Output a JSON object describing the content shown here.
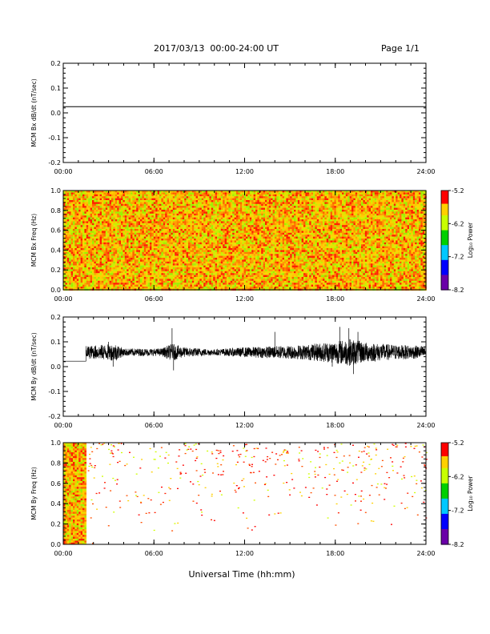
{
  "header": {
    "title": "2017/03/13  00:00-24:00 UT",
    "page": "Page 1/1"
  },
  "xaxis_label": "Universal Time (hh:mm)",
  "chart_data": [
    {
      "type": "line",
      "ylabel": "MCM Bx dB/dt (nT/sec)",
      "xlim": [
        "00:00",
        "24:00"
      ],
      "ylim": [
        -0.2,
        0.2
      ],
      "xticks": [
        "00:00",
        "06:00",
        "12:00",
        "18:00",
        "24:00"
      ],
      "yticks": [
        "-0.2",
        "-0.1",
        "0.0",
        "0.1",
        "0.2"
      ],
      "series": [
        {
          "x": [
            0,
            24
          ],
          "y": [
            0.025,
            0.025
          ],
          "color": "#000000"
        }
      ]
    },
    {
      "type": "heatmap",
      "ylabel": "MCM Bx Freq (Hz)",
      "xlim": [
        "00:00",
        "24:00"
      ],
      "ylim": [
        0.0,
        1.0
      ],
      "xticks": [
        "00:00",
        "06:00",
        "12:00",
        "18:00",
        "24:00"
      ],
      "yticks": [
        "0.0",
        "0.2",
        "0.4",
        "0.6",
        "0.8",
        "1.0"
      ],
      "fill_hours": [
        0,
        24
      ],
      "colorbar": {
        "label": "Log₁₀ Power",
        "range": [
          -8.2,
          -5.2
        ],
        "ticks": [
          "-5.2",
          "-6.2",
          "-7.2",
          "-8.2"
        ]
      }
    },
    {
      "type": "line",
      "ylabel": "MCM By dB/dt (nT/sec)",
      "xlim": [
        "00:00",
        "24:00"
      ],
      "ylim": [
        -0.2,
        0.2
      ],
      "xticks": [
        "00:00",
        "06:00",
        "12:00",
        "18:00",
        "24:00"
      ],
      "yticks": [
        "-0.2",
        "-0.1",
        "0.0",
        "0.1",
        "0.2"
      ],
      "baseline": 0.022,
      "baseline_end_hour": 1.5,
      "mean": 0.058,
      "envelope": [
        [
          1.5,
          0.025
        ],
        [
          3.5,
          0.035
        ],
        [
          4.0,
          0.015
        ],
        [
          6.5,
          0.015
        ],
        [
          7.2,
          0.035
        ],
        [
          8.0,
          0.02
        ],
        [
          10.0,
          0.012
        ],
        [
          12.0,
          0.02
        ],
        [
          14.0,
          0.025
        ],
        [
          16.0,
          0.03
        ],
        [
          18.0,
          0.045
        ],
        [
          19.0,
          0.055
        ],
        [
          20.0,
          0.04
        ],
        [
          22.0,
          0.03
        ],
        [
          24.0,
          0.025
        ]
      ],
      "spikes": [
        [
          3.0,
          0.1
        ],
        [
          3.3,
          0.0
        ],
        [
          7.2,
          0.155
        ],
        [
          7.3,
          -0.015
        ],
        [
          14.0,
          0.14
        ],
        [
          18.3,
          0.16
        ],
        [
          18.9,
          0.155
        ],
        [
          19.2,
          -0.03
        ],
        [
          19.5,
          0.14
        ],
        [
          17.8,
          0.0
        ]
      ]
    },
    {
      "type": "heatmap",
      "ylabel": "MCM By Freq (Hz)",
      "xlim": [
        "00:00",
        "24:00"
      ],
      "ylim": [
        0.0,
        1.0
      ],
      "xticks": [
        "00:00",
        "06:00",
        "12:00",
        "18:00",
        "24:00"
      ],
      "yticks": [
        "0.0",
        "0.2",
        "0.4",
        "0.6",
        "0.8",
        "1.0"
      ],
      "fill_hours": [
        0,
        1.4
      ],
      "sparse_after_hour": 1.4,
      "colorbar": {
        "label": "Log₁₀ Power",
        "range": [
          -8.2,
          -5.2
        ],
        "ticks": [
          "-5.2",
          "-6.2",
          "-7.2",
          "-8.2"
        ]
      }
    }
  ]
}
